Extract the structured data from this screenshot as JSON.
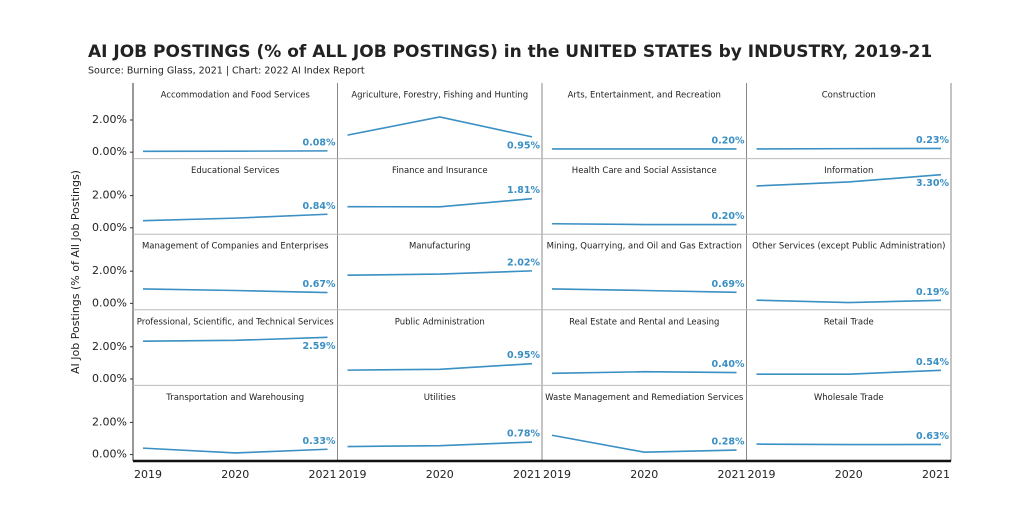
{
  "title": "AI JOB POSTINGS (% of ALL JOB POSTINGS) in the UNITED STATES by INDUSTRY, 2019-21",
  "subtitle": "Source: Burning Glass, 2021 | Chart: 2022 AI Index Report",
  "ylabel": "AI Job Postings (% of All Job Postings)",
  "ylim": [
    -0.4,
    4.3
  ],
  "yticks": [
    {
      "value": 0,
      "label": "0.00%"
    },
    {
      "value": 2,
      "label": "2.00%"
    }
  ],
  "color": "#3a8fc4",
  "chart_data": [
    {
      "type": "line",
      "title": "Accommodation and Food Services",
      "x": [
        2019,
        2020,
        2021
      ],
      "values": [
        0.05,
        0.06,
        0.08
      ],
      "value_labels": [
        null,
        null,
        "0.08%"
      ]
    },
    {
      "type": "line",
      "title": "Agriculture, Forestry, Fishing and Hunting",
      "x": [
        2019,
        2020,
        2021
      ],
      "values": [
        1.06,
        2.19,
        0.95
      ],
      "value_labels": [
        null,
        null,
        "0.95%"
      ]
    },
    {
      "type": "line",
      "title": "Arts, Entertainment, and Recreation",
      "x": [
        2019,
        2020,
        2021
      ],
      "values": [
        0.2,
        0.2,
        0.2
      ],
      "value_labels": [
        null,
        null,
        "0.20%"
      ]
    },
    {
      "type": "line",
      "title": "Construction",
      "x": [
        2019,
        2020,
        2021
      ],
      "values": [
        0.2,
        0.22,
        0.23
      ],
      "value_labels": [
        null,
        null,
        "0.23%"
      ]
    },
    {
      "type": "line",
      "title": "Educational Services",
      "x": [
        2019,
        2020,
        2021
      ],
      "values": [
        0.44,
        0.6,
        0.84
      ],
      "value_labels": [
        null,
        null,
        "0.84%"
      ]
    },
    {
      "type": "line",
      "title": "Finance and Insurance",
      "x": [
        2019,
        2020,
        2021
      ],
      "values": [
        1.31,
        1.3,
        1.81
      ],
      "value_labels": [
        null,
        null,
        "1.81%"
      ]
    },
    {
      "type": "line",
      "title": "Health Care and Social Assistance",
      "x": [
        2019,
        2020,
        2021
      ],
      "values": [
        0.25,
        0.2,
        0.2
      ],
      "value_labels": [
        null,
        null,
        "0.20%"
      ]
    },
    {
      "type": "line",
      "title": "Information",
      "x": [
        2019,
        2020,
        2021
      ],
      "values": [
        2.6,
        2.85,
        3.3
      ],
      "value_labels": [
        null,
        null,
        "3.30%"
      ]
    },
    {
      "type": "line",
      "title": "Management of Companies and Enterprises",
      "x": [
        2019,
        2020,
        2021
      ],
      "values": [
        0.9,
        0.8,
        0.67
      ],
      "value_labels": [
        null,
        null,
        "0.67%"
      ]
    },
    {
      "type": "line",
      "title": "Manufacturing",
      "x": [
        2019,
        2020,
        2021
      ],
      "values": [
        1.75,
        1.82,
        2.02
      ],
      "value_labels": [
        null,
        null,
        "2.02%"
      ]
    },
    {
      "type": "line",
      "title": "Mining, Quarrying, and Oil and Gas Extraction",
      "x": [
        2019,
        2020,
        2021
      ],
      "values": [
        0.9,
        0.8,
        0.69
      ],
      "value_labels": [
        null,
        null,
        "0.69%"
      ]
    },
    {
      "type": "line",
      "title": "Other Services (except Public Administration)",
      "x": [
        2019,
        2020,
        2021
      ],
      "values": [
        0.2,
        0.05,
        0.19
      ],
      "value_labels": [
        null,
        null,
        "0.19%"
      ]
    },
    {
      "type": "line",
      "title": "Professional, Scientific, and Technical Services",
      "x": [
        2019,
        2020,
        2021
      ],
      "values": [
        2.35,
        2.4,
        2.59
      ],
      "value_labels": [
        null,
        null,
        "2.59%"
      ]
    },
    {
      "type": "line",
      "title": "Public Administration",
      "x": [
        2019,
        2020,
        2021
      ],
      "values": [
        0.55,
        0.6,
        0.95
      ],
      "value_labels": [
        null,
        null,
        "0.95%"
      ]
    },
    {
      "type": "line",
      "title": "Real Estate and Rental and Leasing",
      "x": [
        2019,
        2020,
        2021
      ],
      "values": [
        0.35,
        0.45,
        0.4
      ],
      "value_labels": [
        null,
        null,
        "0.40%"
      ]
    },
    {
      "type": "line",
      "title": "Retail Trade",
      "x": [
        2019,
        2020,
        2021
      ],
      "values": [
        0.3,
        0.3,
        0.54
      ],
      "value_labels": [
        null,
        null,
        "0.54%"
      ]
    },
    {
      "type": "line",
      "title": "Transportation and Warehousing",
      "x": [
        2019,
        2020,
        2021
      ],
      "values": [
        0.4,
        0.1,
        0.33
      ],
      "value_labels": [
        null,
        null,
        "0.33%"
      ]
    },
    {
      "type": "line",
      "title": "Utilities",
      "x": [
        2019,
        2020,
        2021
      ],
      "values": [
        0.5,
        0.55,
        0.78
      ],
      "value_labels": [
        null,
        null,
        "0.78%"
      ]
    },
    {
      "type": "line",
      "title": "Waste Management and Remediation Services",
      "x": [
        2019,
        2020,
        2021
      ],
      "values": [
        1.2,
        0.15,
        0.28
      ],
      "value_labels": [
        null,
        null,
        "0.28%"
      ]
    },
    {
      "type": "line",
      "title": "Wholesale Trade",
      "x": [
        2019,
        2020,
        2021
      ],
      "values": [
        0.65,
        0.62,
        0.63
      ],
      "value_labels": [
        null,
        null,
        "0.63%"
      ]
    }
  ]
}
